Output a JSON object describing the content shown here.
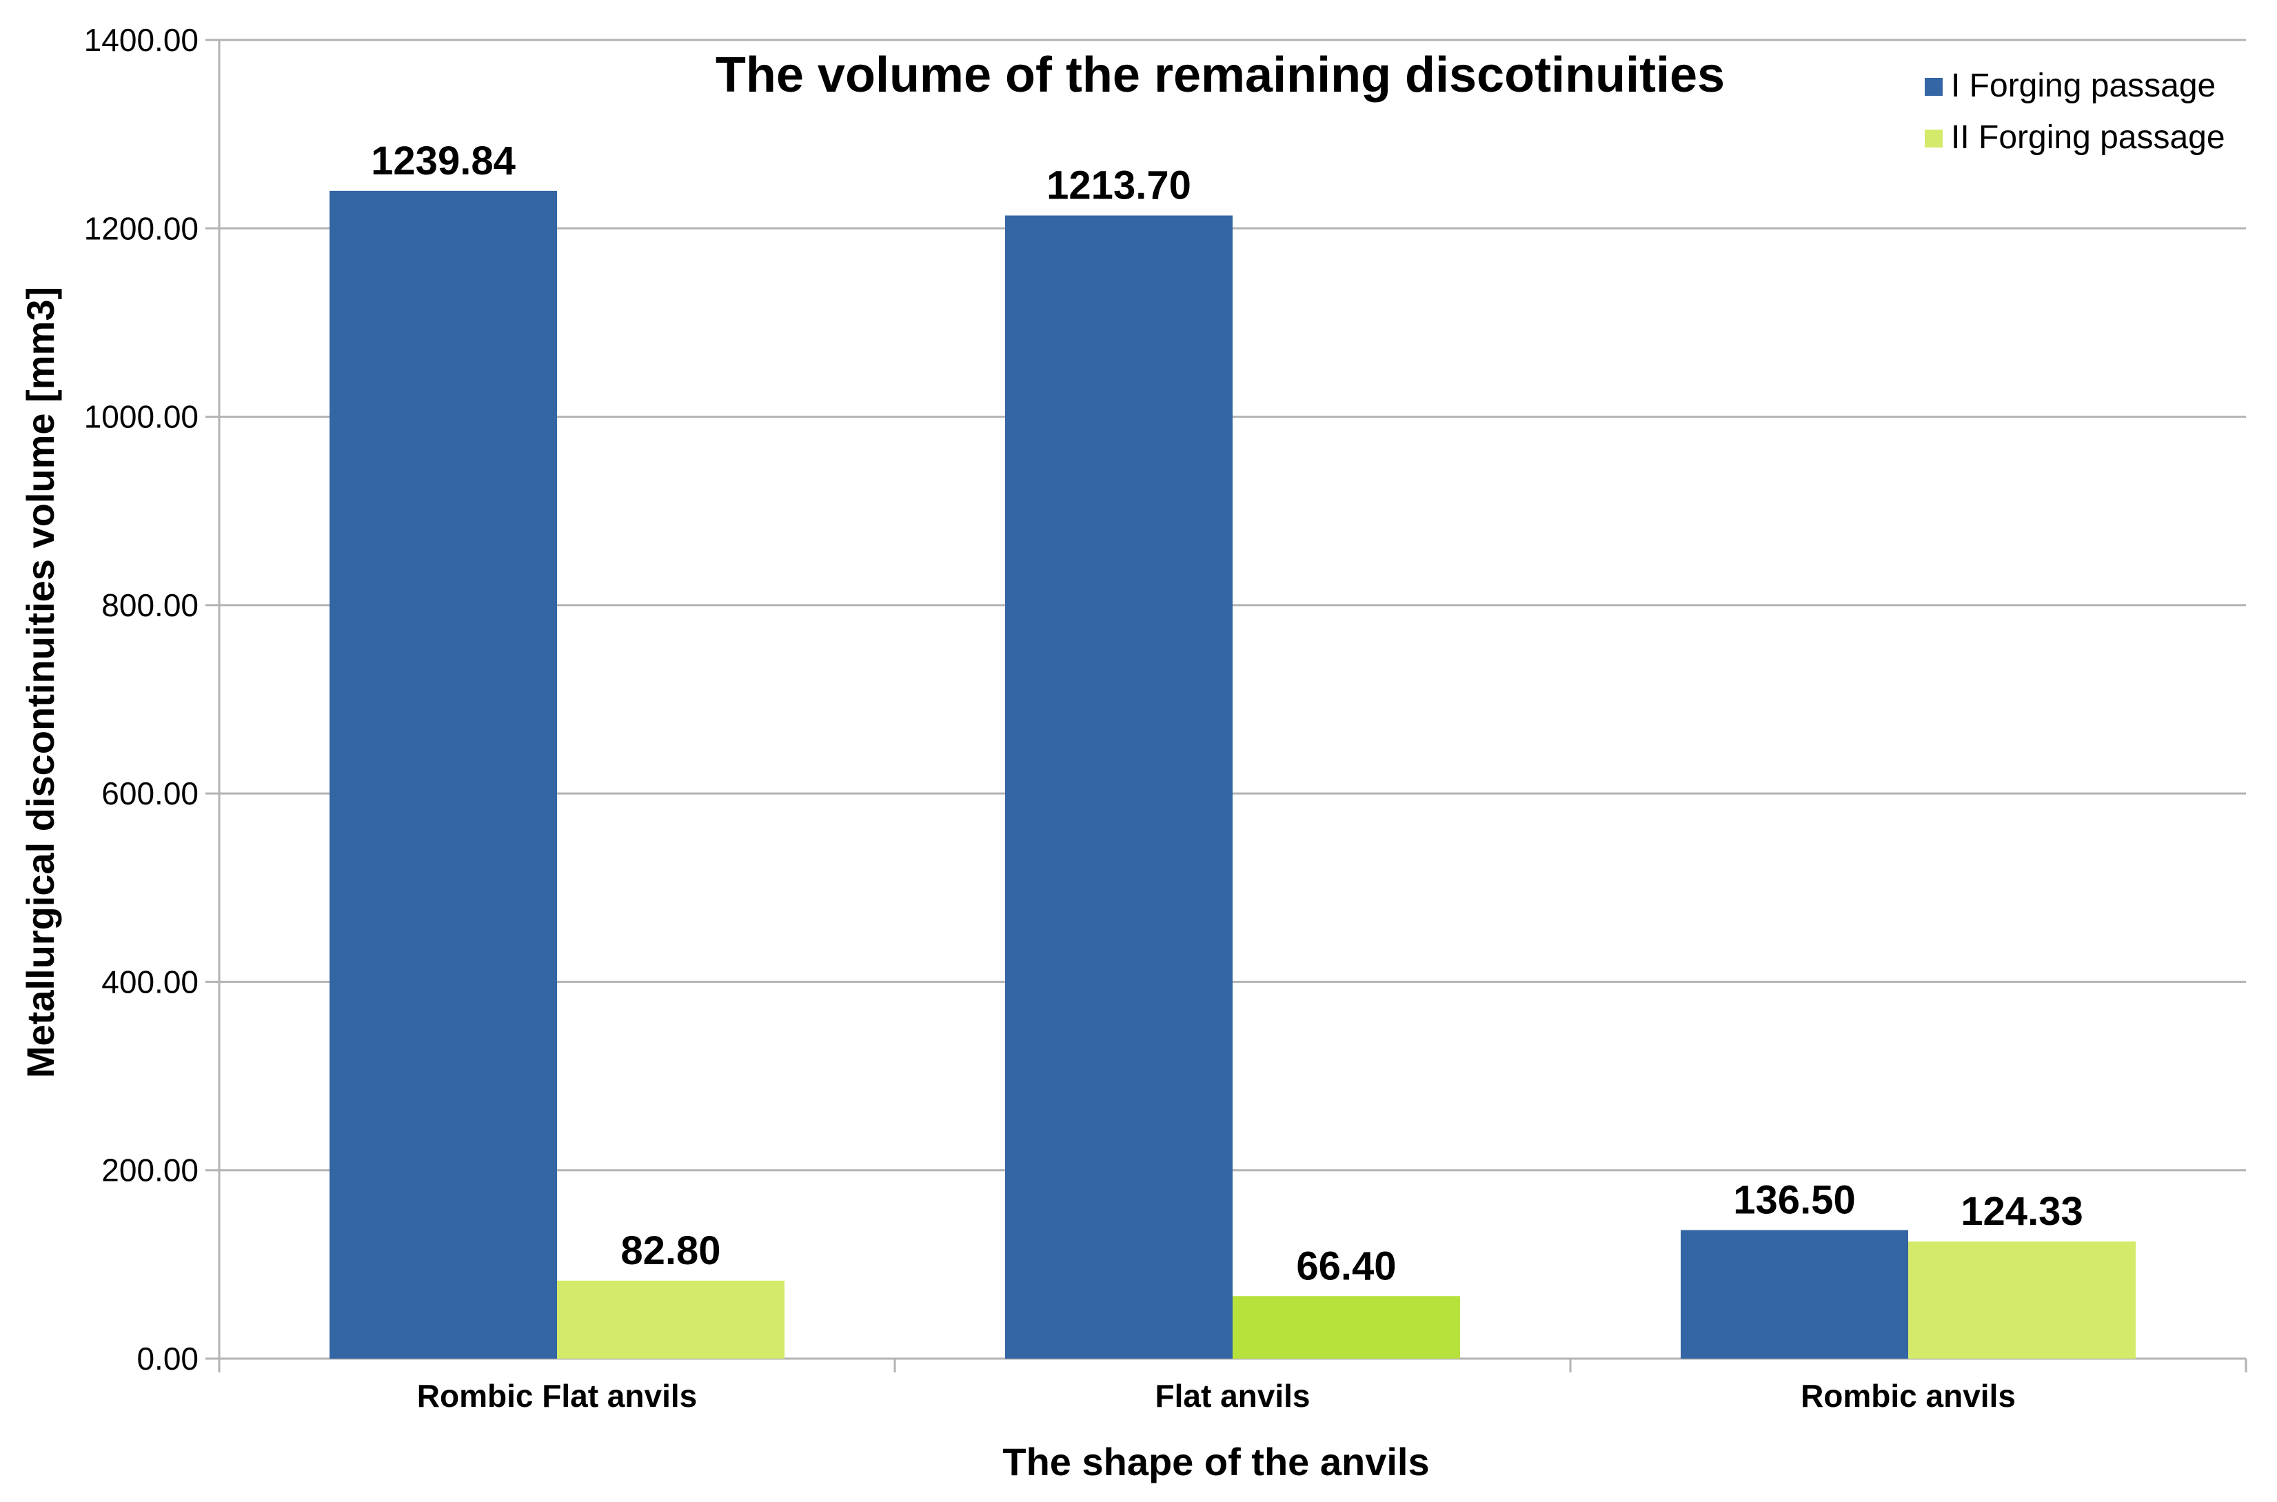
{
  "chart_data": {
    "type": "bar",
    "title": "The volume of the remaining discotinuities",
    "xlabel": "The shape of the anvils",
    "ylabel": "Metallurgical discontinuities volume [mm3]",
    "categories": [
      "Rombic Flat anvils",
      "Flat anvils",
      "Rombic anvils"
    ],
    "series": [
      {
        "name": "I Forging passage",
        "color": "#3465a4",
        "values": [
          1239.84,
          1213.7,
          136.5
        ],
        "labels": [
          "1239.84",
          "1213.70",
          "136.50"
        ],
        "bar_colors": [
          "#3465a4",
          "#3465a4",
          "#3465a4"
        ]
      },
      {
        "name": "II Forging passage",
        "color": "#d4ea6b",
        "values": [
          82.8,
          66.4,
          124.33
        ],
        "labels": [
          "82.80",
          "66.40",
          "124.33"
        ],
        "bar_colors": [
          "#d4ea6b",
          "#b7e13b",
          "#d4ea6b"
        ]
      }
    ],
    "ylim": [
      0,
      1400
    ],
    "yticks": [
      0,
      200,
      400,
      600,
      800,
      1000,
      1200,
      1400
    ],
    "ytick_labels": [
      "0.00",
      "200.00",
      "400.00",
      "600.00",
      "800.00",
      "1000.00",
      "1200.00",
      "1400.00"
    ],
    "grid": true,
    "legend_position": "top-right"
  }
}
